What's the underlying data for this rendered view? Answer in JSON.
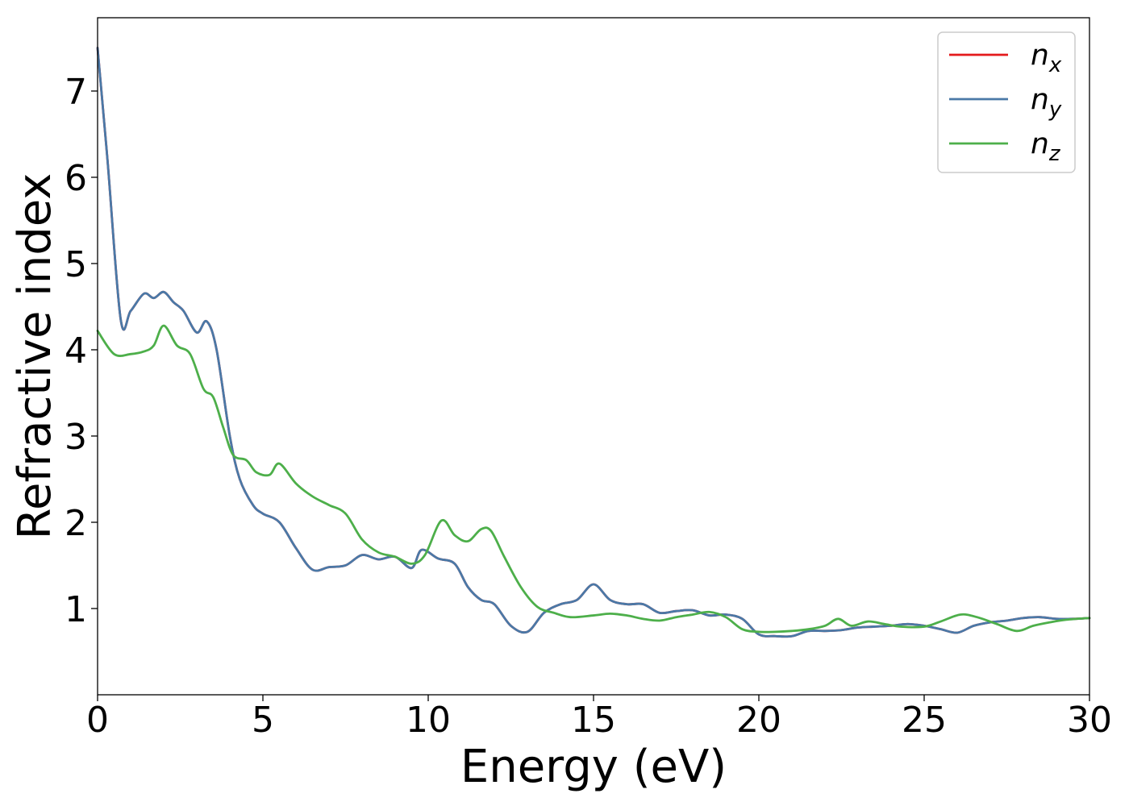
{
  "chart_data": {
    "type": "line",
    "title": "",
    "xlabel": "Energy (eV)",
    "ylabel": "Refractive index",
    "xlim": [
      0,
      30
    ],
    "ylim": [
      0,
      7.85
    ],
    "xticks": [
      0,
      5,
      10,
      15,
      20,
      25,
      30
    ],
    "yticks": [
      1,
      2,
      3,
      4,
      5,
      6,
      7
    ],
    "grid": false,
    "legend_position": "top-right",
    "series": [
      {
        "name": "n",
        "subscript": "x",
        "color": "#e41a1c",
        "x": [
          0,
          0.3,
          0.7,
          1.0,
          1.4,
          1.7,
          2.0,
          2.3,
          2.6,
          3.0,
          3.3,
          3.6,
          4.0,
          4.3,
          4.7,
          5.0,
          5.5,
          6.0,
          6.5,
          7.0,
          7.5,
          8.0,
          8.5,
          9.0,
          9.5,
          9.8,
          10.3,
          10.8,
          11.2,
          11.6,
          12.0,
          12.5,
          13.0,
          13.5,
          14.0,
          14.5,
          15.0,
          15.5,
          16.0,
          16.5,
          17.0,
          17.5,
          18.0,
          18.5,
          19.0,
          19.5,
          20.0,
          20.5,
          21.0,
          21.5,
          22.0,
          22.5,
          23.0,
          23.5,
          24.0,
          24.5,
          25.0,
          25.5,
          26.0,
          26.5,
          27.0,
          27.5,
          28.0,
          28.5,
          29.0,
          29.5,
          30.0
        ],
        "y": [
          7.5,
          6.2,
          4.35,
          4.45,
          4.65,
          4.6,
          4.67,
          4.55,
          4.45,
          4.2,
          4.33,
          4.0,
          3.0,
          2.5,
          2.2,
          2.1,
          2.0,
          1.7,
          1.45,
          1.48,
          1.5,
          1.62,
          1.57,
          1.6,
          1.47,
          1.68,
          1.58,
          1.52,
          1.25,
          1.1,
          1.05,
          0.8,
          0.73,
          0.95,
          1.05,
          1.1,
          1.28,
          1.1,
          1.05,
          1.05,
          0.95,
          0.97,
          0.98,
          0.92,
          0.93,
          0.88,
          0.7,
          0.68,
          0.68,
          0.74,
          0.74,
          0.75,
          0.78,
          0.79,
          0.8,
          0.82,
          0.8,
          0.76,
          0.72,
          0.8,
          0.84,
          0.86,
          0.89,
          0.9,
          0.88,
          0.88,
          0.89
        ]
      },
      {
        "name": "n",
        "subscript": "y",
        "color": "#4a79a7",
        "x": [
          0,
          0.3,
          0.7,
          1.0,
          1.4,
          1.7,
          2.0,
          2.3,
          2.6,
          3.0,
          3.3,
          3.6,
          4.0,
          4.3,
          4.7,
          5.0,
          5.5,
          6.0,
          6.5,
          7.0,
          7.5,
          8.0,
          8.5,
          9.0,
          9.5,
          9.8,
          10.3,
          10.8,
          11.2,
          11.6,
          12.0,
          12.5,
          13.0,
          13.5,
          14.0,
          14.5,
          15.0,
          15.5,
          16.0,
          16.5,
          17.0,
          17.5,
          18.0,
          18.5,
          19.0,
          19.5,
          20.0,
          20.5,
          21.0,
          21.5,
          22.0,
          22.5,
          23.0,
          23.5,
          24.0,
          24.5,
          25.0,
          25.5,
          26.0,
          26.5,
          27.0,
          27.5,
          28.0,
          28.5,
          29.0,
          29.5,
          30.0
        ],
        "y": [
          7.5,
          6.2,
          4.35,
          4.45,
          4.65,
          4.6,
          4.67,
          4.55,
          4.45,
          4.2,
          4.33,
          4.0,
          3.0,
          2.5,
          2.2,
          2.1,
          2.0,
          1.7,
          1.45,
          1.48,
          1.5,
          1.62,
          1.57,
          1.6,
          1.47,
          1.68,
          1.58,
          1.52,
          1.25,
          1.1,
          1.05,
          0.8,
          0.73,
          0.95,
          1.05,
          1.1,
          1.28,
          1.1,
          1.05,
          1.05,
          0.95,
          0.97,
          0.98,
          0.92,
          0.93,
          0.88,
          0.7,
          0.68,
          0.68,
          0.74,
          0.74,
          0.75,
          0.78,
          0.79,
          0.8,
          0.82,
          0.8,
          0.76,
          0.72,
          0.8,
          0.84,
          0.86,
          0.89,
          0.9,
          0.88,
          0.88,
          0.89
        ]
      },
      {
        "name": "n",
        "subscript": "z",
        "color": "#4daf4a",
        "x": [
          0,
          0.5,
          1.0,
          1.4,
          1.7,
          2.0,
          2.4,
          2.8,
          3.2,
          3.5,
          3.8,
          4.1,
          4.5,
          4.8,
          5.2,
          5.5,
          6.0,
          6.5,
          7.0,
          7.5,
          8.0,
          8.5,
          9.0,
          9.5,
          9.9,
          10.4,
          10.8,
          11.2,
          11.6,
          11.9,
          12.3,
          12.8,
          13.3,
          13.8,
          14.3,
          15.0,
          15.5,
          16.0,
          16.5,
          17.0,
          17.5,
          18.0,
          18.5,
          19.0,
          19.5,
          20.0,
          20.5,
          21.0,
          21.5,
          22.0,
          22.4,
          22.8,
          23.3,
          23.8,
          24.3,
          25.0,
          25.5,
          26.1,
          26.6,
          27.2,
          27.8,
          28.3,
          28.8,
          29.3,
          30.0
        ],
        "y": [
          4.22,
          3.95,
          3.95,
          3.98,
          4.05,
          4.28,
          4.05,
          3.95,
          3.55,
          3.45,
          3.1,
          2.78,
          2.72,
          2.58,
          2.55,
          2.68,
          2.45,
          2.3,
          2.2,
          2.1,
          1.8,
          1.65,
          1.6,
          1.52,
          1.62,
          2.02,
          1.85,
          1.78,
          1.92,
          1.9,
          1.6,
          1.25,
          1.02,
          0.95,
          0.9,
          0.92,
          0.94,
          0.92,
          0.88,
          0.86,
          0.9,
          0.93,
          0.96,
          0.9,
          0.76,
          0.73,
          0.73,
          0.74,
          0.76,
          0.8,
          0.88,
          0.8,
          0.85,
          0.82,
          0.79,
          0.79,
          0.85,
          0.93,
          0.9,
          0.82,
          0.74,
          0.8,
          0.84,
          0.87,
          0.89
        ]
      }
    ]
  }
}
